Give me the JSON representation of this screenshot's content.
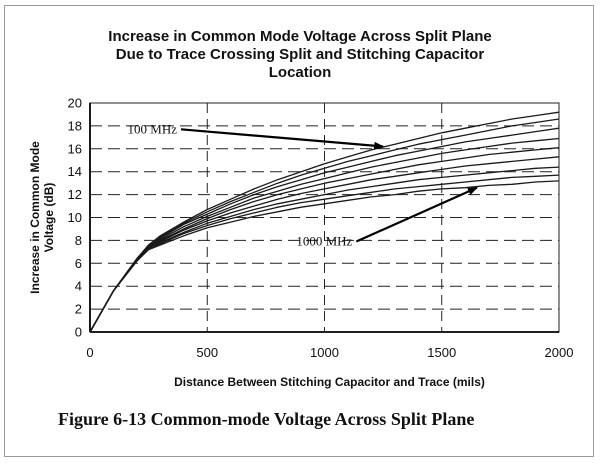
{
  "chart_data": {
    "type": "line",
    "title_lines": [
      "Increase in Common Mode Voltage Across Split Plane",
      "Due to Trace Crossing Split and Stitching Capacitor",
      "Location"
    ],
    "xlabel": "Distance Between Stitching Capacitor and Trace (mils)",
    "ylabel": "Increase in Common Mode Voltage (dB)",
    "xlim": [
      0,
      2000
    ],
    "ylim": [
      0,
      20
    ],
    "x_ticks": [
      0,
      500,
      1000,
      1500,
      2000
    ],
    "y_ticks": [
      0,
      2,
      4,
      6,
      8,
      10,
      12,
      14,
      16,
      18,
      20
    ],
    "grid": "dashed",
    "x": [
      0,
      100,
      200,
      250,
      300,
      400,
      500,
      600,
      700,
      800,
      900,
      1000,
      1100,
      1200,
      1300,
      1400,
      1500,
      1600,
      1700,
      1800,
      1900,
      2000
    ],
    "series": [
      {
        "values": [
          0,
          3.6,
          6.4,
          7.6,
          8.4,
          9.6,
          10.7,
          11.6,
          12.5,
          13.3,
          14.0,
          14.7,
          15.3,
          15.9,
          16.4,
          16.9,
          17.4,
          17.8,
          18.2,
          18.6,
          18.9,
          19.2
        ]
      },
      {
        "values": [
          0,
          3.6,
          6.4,
          7.6,
          8.3,
          9.5,
          10.5,
          11.4,
          12.2,
          13.0,
          13.7,
          14.3,
          14.9,
          15.4,
          15.9,
          16.4,
          16.8,
          17.2,
          17.6,
          18.0,
          18.3,
          18.6
        ]
      },
      {
        "values": [
          0,
          3.6,
          6.4,
          7.5,
          8.2,
          9.4,
          10.3,
          11.2,
          12.0,
          12.7,
          13.3,
          13.9,
          14.4,
          14.9,
          15.4,
          15.8,
          16.2,
          16.6,
          16.9,
          17.2,
          17.5,
          17.8
        ]
      },
      {
        "values": [
          0,
          3.6,
          6.3,
          7.5,
          8.1,
          9.2,
          10.1,
          10.9,
          11.7,
          12.3,
          12.9,
          13.4,
          13.9,
          14.4,
          14.8,
          15.2,
          15.6,
          15.9,
          16.2,
          16.5,
          16.7,
          16.9
        ]
      },
      {
        "values": [
          0,
          3.6,
          6.3,
          7.4,
          8.0,
          9.0,
          9.9,
          10.7,
          11.4,
          12.0,
          12.5,
          13.0,
          13.4,
          13.8,
          14.2,
          14.6,
          14.9,
          15.2,
          15.5,
          15.7,
          15.9,
          16.1
        ]
      },
      {
        "values": [
          0,
          3.6,
          6.3,
          7.4,
          7.9,
          8.9,
          9.7,
          10.4,
          11.0,
          11.6,
          12.1,
          12.5,
          12.9,
          13.3,
          13.6,
          13.9,
          14.2,
          14.5,
          14.7,
          14.9,
          15.1,
          15.3
        ]
      },
      {
        "values": [
          0,
          3.6,
          6.2,
          7.3,
          7.8,
          8.7,
          9.5,
          10.1,
          10.7,
          11.2,
          11.6,
          12.0,
          12.4,
          12.7,
          13.0,
          13.3,
          13.5,
          13.7,
          13.9,
          14.1,
          14.3,
          14.4
        ]
      },
      {
        "values": [
          0,
          3.6,
          6.2,
          7.3,
          7.7,
          8.6,
          9.3,
          9.9,
          10.4,
          10.9,
          11.3,
          11.6,
          11.9,
          12.2,
          12.5,
          12.7,
          12.9,
          13.1,
          13.3,
          13.5,
          13.6,
          13.7
        ]
      },
      {
        "values": [
          0,
          3.6,
          6.2,
          7.2,
          7.6,
          8.4,
          9.1,
          9.6,
          10.1,
          10.5,
          10.9,
          11.2,
          11.5,
          11.8,
          12.0,
          12.3,
          12.5,
          12.6,
          12.8,
          12.9,
          13.1,
          13.2
        ]
      }
    ],
    "annotations": [
      {
        "text": "100 MHz",
        "at": [
          160,
          17.7
        ],
        "arrow_to": [
          1250,
          16.2
        ]
      },
      {
        "text": "1000 MHz",
        "at": [
          880,
          7.9
        ],
        "arrow_to": [
          1650,
          12.6
        ]
      }
    ]
  },
  "caption": "Figure 6-13  Common-mode Voltage Across Split Plane",
  "colors": {
    "line": "#1a1a1a",
    "grid": "#222222",
    "background": "#ffffff"
  }
}
